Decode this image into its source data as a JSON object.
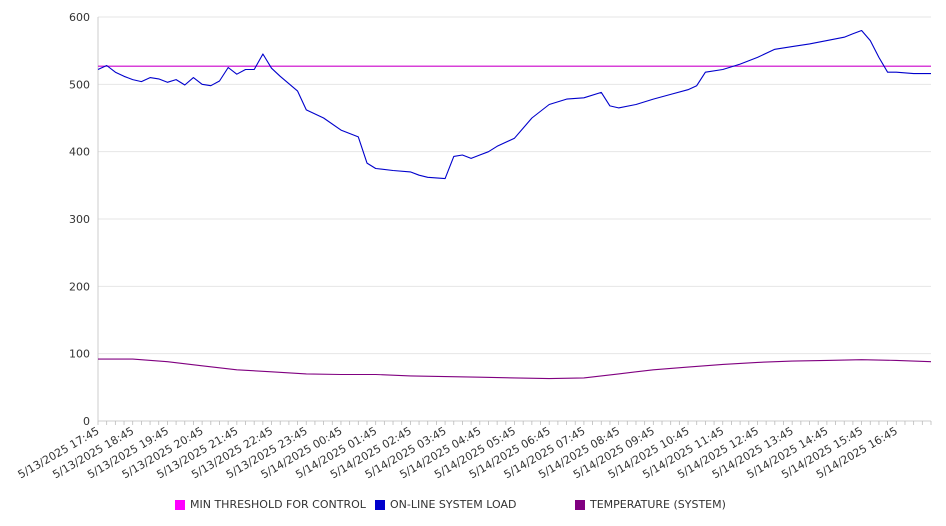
{
  "chart_data": {
    "type": "line",
    "title": "",
    "xlabel": "",
    "ylabel": "",
    "ylim": [
      0,
      600
    ],
    "yticks": [
      0,
      100,
      200,
      300,
      400,
      500,
      600
    ],
    "grid": true,
    "legend_position": "bottom",
    "x_tick_labels": [
      "5/13/2025 17:45",
      "5/13/2025 18:45",
      "5/13/2025 19:45",
      "5/13/2025 20:45",
      "5/13/2025 21:45",
      "5/13/2025 22:45",
      "5/13/2025 23:45",
      "5/14/2025 00:45",
      "5/14/2025 01:45",
      "5/14/2025 02:45",
      "5/14/2025 03:45",
      "5/14/2025 04:45",
      "5/14/2025 05:45",
      "5/14/2025 06:45",
      "5/14/2025 07:45",
      "5/14/2025 08:45",
      "5/14/2025 09:45",
      "5/14/2025 10:45",
      "5/14/2025 11:45",
      "5/14/2025 12:45",
      "5/14/2025 13:45",
      "5/14/2025 14:45",
      "5/14/2025 15:45",
      "5/14/2025 16:45"
    ],
    "x_start": "5/13/2025 17:45",
    "x_end": "5/14/2025 17:45",
    "series": [
      {
        "name": "MIN THRESHOLD FOR CONTROL",
        "color": "#cc00cc",
        "times": [
          "5/13/2025 17:45",
          "5/14/2025 17:45"
        ],
        "values": [
          527,
          527
        ]
      },
      {
        "name": "ON-LINE SYSTEM LOAD",
        "color": "#0000cc",
        "times": [
          "5/13/2025 17:45",
          "5/13/2025 18:00",
          "5/13/2025 18:15",
          "5/13/2025 18:30",
          "5/13/2025 18:45",
          "5/13/2025 19:00",
          "5/13/2025 19:15",
          "5/13/2025 19:30",
          "5/13/2025 19:45",
          "5/13/2025 20:00",
          "5/13/2025 20:15",
          "5/13/2025 20:30",
          "5/13/2025 20:45",
          "5/13/2025 21:00",
          "5/13/2025 21:15",
          "5/13/2025 21:30",
          "5/13/2025 21:45",
          "5/13/2025 22:00",
          "5/13/2025 22:15",
          "5/13/2025 22:30",
          "5/13/2025 22:45",
          "5/13/2025 23:00",
          "5/13/2025 23:30",
          "5/13/2025 23:45",
          "5/14/2025 00:15",
          "5/14/2025 00:45",
          "5/14/2025 01:15",
          "5/14/2025 01:30",
          "5/14/2025 01:45",
          "5/14/2025 02:15",
          "5/14/2025 02:45",
          "5/14/2025 03:00",
          "5/14/2025 03:15",
          "5/14/2025 03:45",
          "5/14/2025 04:00",
          "5/14/2025 04:15",
          "5/14/2025 04:30",
          "5/14/2025 04:45",
          "5/14/2025 05:00",
          "5/14/2025 05:15",
          "5/14/2025 05:45",
          "5/14/2025 06:15",
          "5/14/2025 06:45",
          "5/14/2025 07:15",
          "5/14/2025 07:45",
          "5/14/2025 08:15",
          "5/14/2025 08:30",
          "5/14/2025 08:45",
          "5/14/2025 09:15",
          "5/14/2025 09:45",
          "5/14/2025 10:15",
          "5/14/2025 10:45",
          "5/14/2025 11:00",
          "5/14/2025 11:15",
          "5/14/2025 11:45",
          "5/14/2025 12:15",
          "5/14/2025 12:45",
          "5/14/2025 13:15",
          "5/14/2025 13:45",
          "5/14/2025 14:15",
          "5/14/2025 14:45",
          "5/14/2025 15:15",
          "5/14/2025 15:30",
          "5/14/2025 15:45",
          "5/14/2025 16:00",
          "5/14/2025 16:15",
          "5/14/2025 16:30",
          "5/14/2025 16:45",
          "5/14/2025 17:15",
          "5/14/2025 17:45"
        ],
        "values": [
          522,
          528,
          518,
          512,
          507,
          504,
          510,
          508,
          503,
          507,
          499,
          510,
          500,
          498,
          505,
          525,
          515,
          522,
          522,
          545,
          524,
          512,
          490,
          462,
          450,
          432,
          422,
          383,
          375,
          372,
          370,
          365,
          362,
          360,
          393,
          395,
          390,
          395,
          400,
          408,
          420,
          450,
          470,
          478,
          480,
          488,
          468,
          465,
          470,
          478,
          485,
          492,
          498,
          518,
          522,
          530,
          540,
          552,
          556,
          560,
          565,
          570,
          575,
          580,
          565,
          540,
          518,
          518,
          516,
          516
        ]
      },
      {
        "name": "TEMPERATURE (SYSTEM)",
        "color": "#800080",
        "times": [
          "5/13/2025 17:45",
          "5/13/2025 18:45",
          "5/13/2025 19:45",
          "5/13/2025 20:45",
          "5/13/2025 21:45",
          "5/13/2025 22:45",
          "5/13/2025 23:45",
          "5/14/2025 00:45",
          "5/14/2025 01:45",
          "5/14/2025 02:45",
          "5/14/2025 03:45",
          "5/14/2025 04:45",
          "5/14/2025 05:45",
          "5/14/2025 06:45",
          "5/14/2025 07:45",
          "5/14/2025 08:45",
          "5/14/2025 09:45",
          "5/14/2025 10:45",
          "5/14/2025 11:45",
          "5/14/2025 12:45",
          "5/14/2025 13:45",
          "5/14/2025 14:45",
          "5/14/2025 15:45",
          "5/14/2025 16:45",
          "5/14/2025 17:45"
        ],
        "values": [
          92,
          92,
          88,
          82,
          76,
          73,
          70,
          69,
          69,
          67,
          66,
          65,
          64,
          63,
          64,
          70,
          76,
          80,
          84,
          87,
          89,
          90,
          91,
          90,
          88
        ]
      }
    ]
  }
}
